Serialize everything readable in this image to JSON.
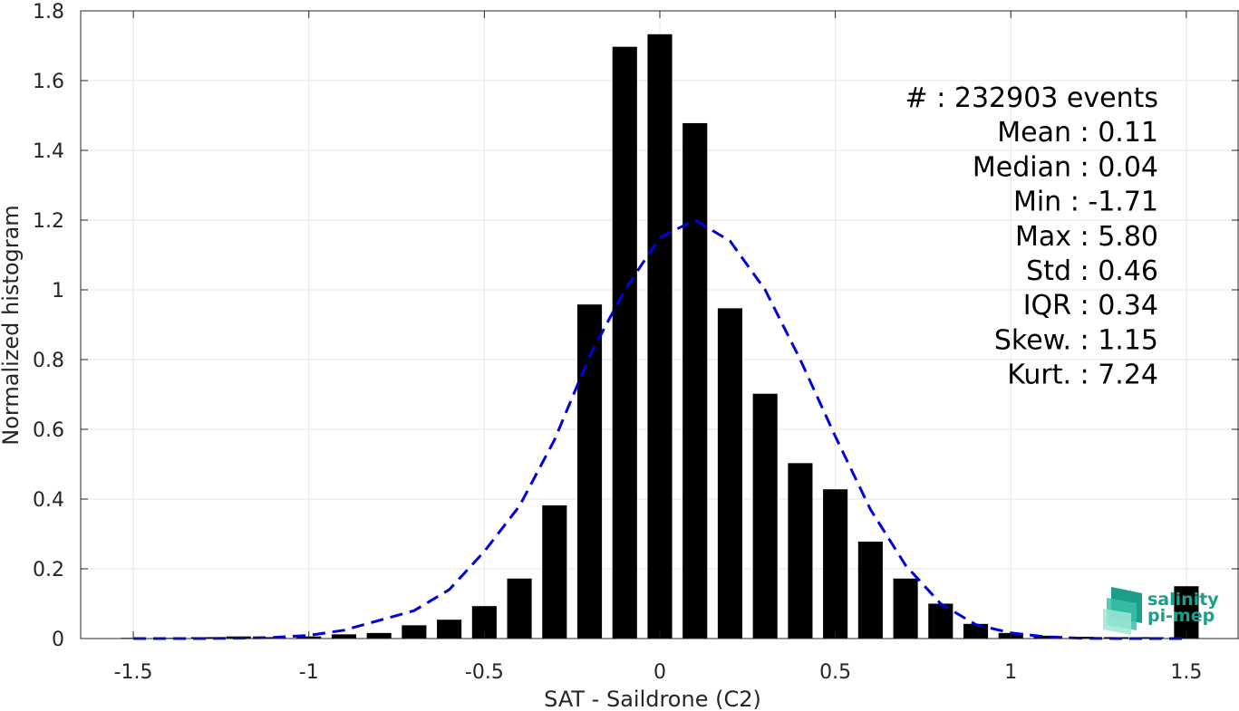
{
  "chart_data": {
    "type": "bar",
    "xlabel": "SAT - Saildrone (C2)",
    "ylabel": "Normalized histogram",
    "xlim": [
      -1.65,
      1.65
    ],
    "ylim": [
      0,
      1.8
    ],
    "grid": true,
    "x_ticks": [
      -1.5,
      -1,
      -0.5,
      0,
      0.5,
      1,
      1.5
    ],
    "x_tick_labels": [
      "-1.5",
      "-1",
      "-0.5",
      "0",
      "0.5",
      "1",
      "1.5"
    ],
    "y_ticks": [
      0,
      0.2,
      0.4,
      0.6,
      0.8,
      1,
      1.2,
      1.4,
      1.6,
      1.8
    ],
    "y_tick_labels": [
      "0",
      "0.2",
      "0.4",
      "0.6",
      "0.8",
      "1",
      "1.2",
      "1.4",
      "1.6",
      "1.8"
    ],
    "bar_color": "#000000",
    "fit_color": "#0000dd",
    "series": [
      {
        "type": "bar",
        "x": [
          -1.5,
          -1.4,
          -1.3,
          -1.2,
          -1.1,
          -1.0,
          -0.9,
          -0.8,
          -0.7,
          -0.6,
          -0.5,
          -0.4,
          -0.3,
          -0.2,
          -0.1,
          0.0,
          0.1,
          0.2,
          0.3,
          0.4,
          0.5,
          0.6,
          0.7,
          0.8,
          0.9,
          1.0,
          1.1,
          1.2,
          1.3,
          1.4,
          1.5
        ],
        "values": [
          0.002,
          0.002,
          0.004,
          0.006,
          0.004,
          0.006,
          0.012,
          0.016,
          0.038,
          0.054,
          0.093,
          0.172,
          0.382,
          0.958,
          1.697,
          1.733,
          1.478,
          0.947,
          0.702,
          0.503,
          0.428,
          0.278,
          0.172,
          0.1,
          0.042,
          0.016,
          0.008,
          0.005,
          0.004,
          0.004,
          0.15
        ]
      },
      {
        "type": "line",
        "style": "dashed",
        "x": [
          -1.5,
          -1.4,
          -1.3,
          -1.2,
          -1.1,
          -1.0,
          -0.9,
          -0.8,
          -0.7,
          -0.6,
          -0.5,
          -0.4,
          -0.3,
          -0.2,
          -0.1,
          0.0,
          0.1,
          0.2,
          0.3,
          0.4,
          0.5,
          0.6,
          0.7,
          0.8,
          0.9,
          1.0,
          1.1,
          1.2,
          1.3,
          1.4,
          1.5
        ],
        "values": [
          0.0,
          0.0,
          0.0,
          0.001,
          0.003,
          0.009,
          0.024,
          0.052,
          0.08,
          0.14,
          0.25,
          0.38,
          0.57,
          0.81,
          1.0,
          1.15,
          1.2,
          1.14,
          1.0,
          0.8,
          0.58,
          0.37,
          0.21,
          0.1,
          0.04,
          0.016,
          0.005,
          0.001,
          0.0,
          0.0,
          0.0
        ]
      }
    ],
    "stats": [
      "#  : 232903 events",
      "Mean : 0.11",
      "Median : 0.04",
      "Min : -1.71",
      "Max : 5.80",
      "Std : 0.46",
      "IQR : 0.34",
      "Skew. : 1.15",
      "Kurt. : 7.24"
    ]
  },
  "logo": {
    "line1": "salinity",
    "line2": "pi-mep",
    "color": "#1aa08a"
  }
}
